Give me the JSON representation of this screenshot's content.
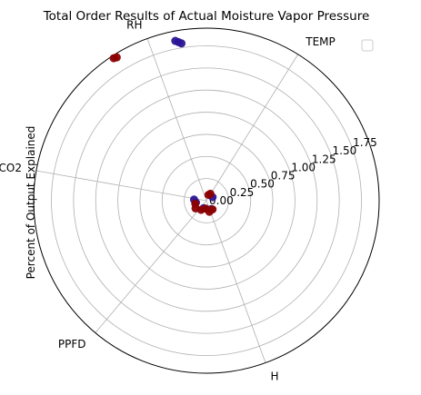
{
  "chart_data": {
    "type": "scatter",
    "projection": "polar",
    "title": "Total Order Results of Actual Moisture Vapor Pressure",
    "ylabel": "Percent of Output Explained",
    "categories": [
      "TEMP",
      "RH",
      "CO2",
      "PPFD",
      "H"
    ],
    "category_angles_deg": [
      58,
      110,
      170,
      230,
      290
    ],
    "radial_ticks": [
      "0.00",
      "0.25",
      "0.50",
      "0.75",
      "1.00",
      "1.25",
      "1.50",
      "1.75"
    ],
    "radial_tick_values": [
      0,
      0.25,
      0.5,
      0.75,
      1.0,
      1.25,
      1.5,
      1.75
    ],
    "rlim": [
      0,
      1.95
    ],
    "grid": true,
    "legend": "top-right",
    "series": [
      {
        "color": "#2b1596",
        "points": [
          {
            "angle": 100,
            "r": 1.82
          },
          {
            "angle": 101,
            "r": 1.84
          },
          {
            "angle": 99,
            "r": 1.8
          },
          {
            "angle": 30,
            "r": 0.08
          },
          {
            "angle": 175,
            "r": 0.14
          },
          {
            "angle": 190,
            "r": 0.12
          },
          {
            "angle": 250,
            "r": 0.09
          },
          {
            "angle": 300,
            "r": 0.11
          }
        ]
      },
      {
        "color": "#8b0000",
        "points": [
          {
            "angle": 122,
            "r": 1.91
          },
          {
            "angle": 123,
            "r": 1.92
          },
          {
            "angle": 60,
            "r": 0.09
          },
          {
            "angle": 70,
            "r": 0.07
          },
          {
            "angle": 195,
            "r": 0.13
          },
          {
            "angle": 215,
            "r": 0.15
          },
          {
            "angle": 240,
            "r": 0.12
          },
          {
            "angle": 265,
            "r": 0.09
          },
          {
            "angle": 285,
            "r": 0.13
          },
          {
            "angle": 305,
            "r": 0.12
          }
        ]
      }
    ]
  }
}
